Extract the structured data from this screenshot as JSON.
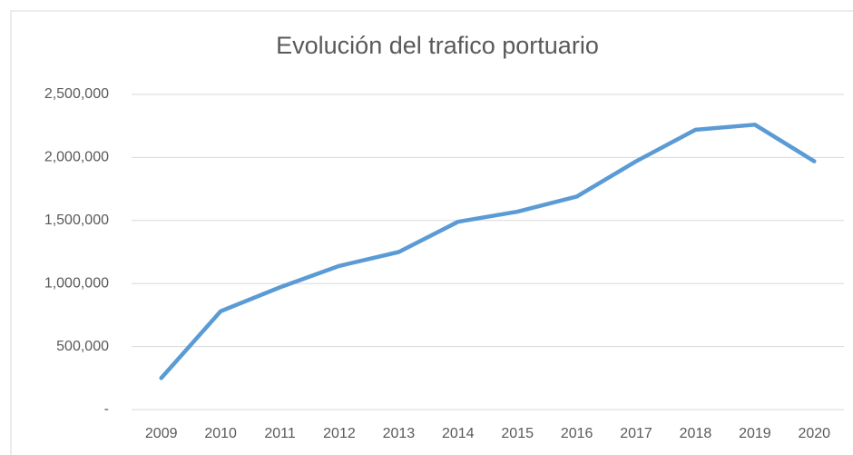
{
  "chart_data": {
    "type": "line",
    "title": "Evolución del trafico portuario",
    "categories": [
      "2009",
      "2010",
      "2011",
      "2012",
      "2013",
      "2014",
      "2015",
      "2016",
      "2017",
      "2018",
      "2019",
      "2020"
    ],
    "values": [
      250000,
      780000,
      970000,
      1140000,
      1250000,
      1490000,
      1570000,
      1690000,
      1970000,
      2220000,
      2260000,
      1970000
    ],
    "color": "#5b9bd5",
    "ylim": [
      0,
      2500000
    ],
    "yticks": [
      {
        "value": 0,
        "label": "-"
      },
      {
        "value": 500000,
        "label": "500,000"
      },
      {
        "value": 1000000,
        "label": "1,000,000"
      },
      {
        "value": 1500000,
        "label": "1,500,000"
      },
      {
        "value": 2000000,
        "label": "2,000,000"
      },
      {
        "value": 2500000,
        "label": "2,500,000"
      }
    ],
    "grid": true
  }
}
